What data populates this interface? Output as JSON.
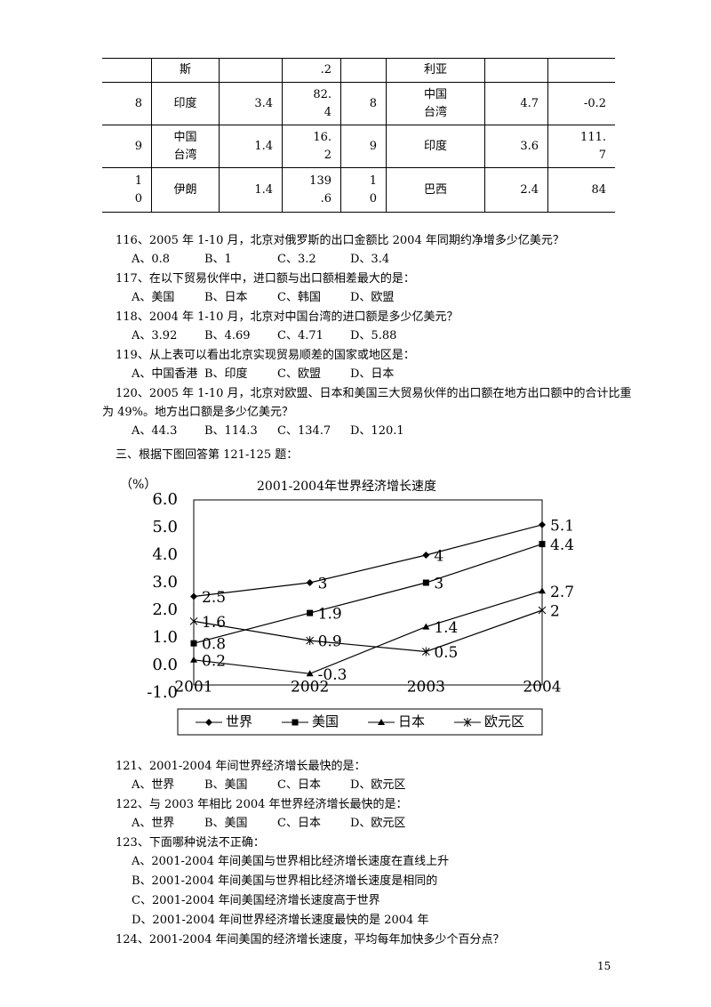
{
  "table": {
    "rows": [
      [
        null,
        "斯",
        null,
        ".2",
        null,
        "利亚",
        null,
        null
      ],
      [
        "8",
        "印度",
        "3.4",
        "82.\n4",
        "8",
        "中国\n台湾",
        "4.7",
        "-0.2"
      ],
      [
        "9",
        "中国\n台湾",
        "1.4",
        "16.\n2",
        "9",
        "印度",
        "3.6",
        "111.\n7"
      ],
      [
        "1\n0",
        "伊朗",
        "1.4",
        "139\n.6",
        "1\n0",
        "巴西",
        "2.4",
        "84"
      ]
    ]
  },
  "questions_a": [
    {
      "lines": [
        "116、2005 年 1-10 月，北京对俄罗斯的出口金额比 2004 年同期约净增多少亿美元？"
      ],
      "options": [
        "A、0.8",
        "B、1",
        "C、3.2",
        "D、3.4"
      ]
    },
    {
      "lines": [
        "117、在以下贸易伙伴中，进口额与出口额相差最大的是："
      ],
      "options": [
        "A、美国",
        "B、日本",
        "C、韩国",
        "D、欧盟"
      ]
    },
    {
      "lines": [
        "118、2004 年 1-10 月，北京对中国台湾的进口额是多少亿美元？"
      ],
      "options": [
        "A、3.92",
        "B、4.69",
        "C、4.71",
        "D、5.88"
      ]
    },
    {
      "lines": [
        "119、从上表可以看出北京实现贸易顺差的国家或地区是："
      ],
      "options": [
        "A、中国香港",
        "B、印度",
        "C、欧盟",
        "D、日本"
      ]
    },
    {
      "lines": [
        "120、2005 年 1-10 月，北京对欧盟、日本和美国三大贸易伙伴的出口额在地方出口额中的合计比重",
        "为 49%。地方出口额是多少亿美元？"
      ],
      "options": [
        "A、44.3",
        "B、114.3",
        "C、134.7",
        "D、120.1"
      ]
    }
  ],
  "section": "三、根据下图回答第 121-125 题：",
  "chart_data": {
    "type": "line",
    "title": "2001-2004年世界经济增长速度",
    "y_label": "（%）",
    "categories": [
      "2001",
      "2002",
      "2003",
      "2004"
    ],
    "ylim": [
      -1,
      6
    ],
    "yticks": [
      {
        "value": 6,
        "label": "6.0"
      },
      {
        "value": 5,
        "label": "5.0"
      },
      {
        "value": 4,
        "label": "4.0"
      },
      {
        "value": 3,
        "label": "3.0"
      },
      {
        "value": 2,
        "label": "2.0"
      },
      {
        "value": 1,
        "label": "1.0"
      },
      {
        "value": 0,
        "label": "0.0"
      },
      {
        "value": -1,
        "label": "-1.0"
      }
    ],
    "series": [
      {
        "name": "世界",
        "color": "#000000",
        "marker": "diamond",
        "values": [
          2.5,
          3,
          4,
          5.1
        ]
      },
      {
        "name": "美国",
        "color": "#000000",
        "marker": "square",
        "values": [
          0.8,
          1.9,
          3,
          4.4
        ]
      },
      {
        "name": "日本",
        "color": "#000000",
        "marker": "triangle",
        "values": [
          0.2,
          -0.3,
          1.4,
          2.7
        ]
      },
      {
        "name": "欧元区",
        "color": "#000000",
        "marker": "star",
        "values": [
          1.6,
          0.9,
          0.5,
          2
        ]
      }
    ],
    "legend": "bottom"
  },
  "questions_b": [
    {
      "lines": [
        "121、2001-2004 年间世界经济增长最快的是："
      ],
      "options": [
        "A、世界",
        "B、美国",
        "C、日本",
        "D、欧元区"
      ]
    },
    {
      "lines": [
        "122、与 2003 年相比 2004 年世界经济增长最快的是："
      ],
      "options": [
        "A、世界",
        "B、美国",
        "C、日本",
        "D、欧元区"
      ]
    },
    {
      "lines": [
        "123、下面哪种说法不正确："
      ],
      "options": [
        "A、2001-2004 年间美国与世界相比经济增长速度在直线上升",
        "B、2001-2004 年间美国与世界相比经济增长速度是相同的",
        "C、2001-2004 年间美国经济增长速度高于世界",
        "D、2001-2004 年间世界经济增长速度最快的是 2004 年"
      ]
    },
    {
      "lines": [
        "124、2001-2004 年间美国的经济增长速度，平均每年加快多少个百分点？"
      ],
      "options": []
    }
  ],
  "page_number": "15"
}
